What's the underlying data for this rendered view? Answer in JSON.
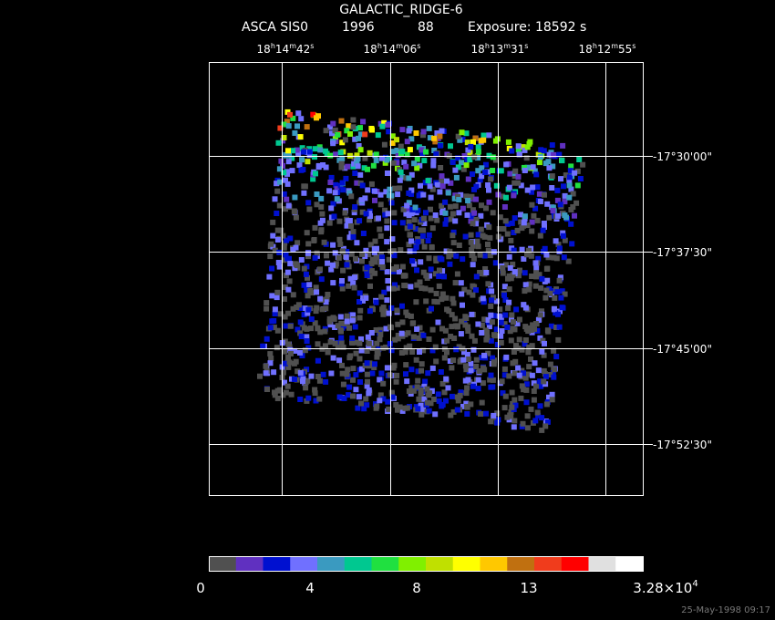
{
  "header": {
    "title": "GALACTIC_RIDGE-6",
    "instrument": "ASCA SIS0",
    "year": "1996",
    "number": "88",
    "exposure": "Exposure: 18592 s"
  },
  "ra_labels": [
    [
      "18",
      "h",
      "14",
      "m",
      "42",
      "s"
    ],
    [
      "18",
      "h",
      "14",
      "m",
      "06",
      "s"
    ],
    [
      "18",
      "h",
      "13",
      "m",
      "31",
      "s"
    ],
    [
      "18",
      "h",
      "12",
      "m",
      "55",
      "s"
    ]
  ],
  "dec_labels": [
    "-17°30'00\"",
    "-17°37'30\"",
    "-17°45'00\"",
    "-17°52'30\""
  ],
  "colorbar": {
    "colors": [
      "#505050",
      "#6030c0",
      "#0010d0",
      "#7070ff",
      "#3a9ac0",
      "#00c890",
      "#20e040",
      "#80f000",
      "#c0e000",
      "#ffff00",
      "#ffc800",
      "#c07010",
      "#f03c1c",
      "#ff0000",
      "#e0e0e0",
      "#ffffff"
    ],
    "labels": [
      [
        "0"
      ],
      [
        "4"
      ],
      [
        "8"
      ],
      [
        "13"
      ],
      [
        "3.28×10",
        "4"
      ]
    ]
  },
  "footer": "25-May-1998 09:17"
}
